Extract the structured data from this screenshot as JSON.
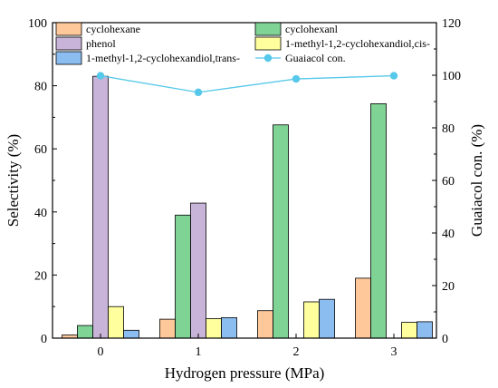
{
  "chart_data": {
    "type": "bar+line",
    "categories": [
      "0",
      "1",
      "2",
      "3"
    ],
    "xlabel": "Hydrogen pressure (MPa)",
    "ylabel": "Selectivity (%)",
    "y2label": "Guaiacol con. (%)",
    "ylim": [
      0,
      100
    ],
    "y2lim": [
      0,
      120
    ],
    "yticks": [
      "0",
      "20",
      "40",
      "60",
      "80",
      "100"
    ],
    "y2ticks": [
      "0",
      "20",
      "40",
      "60",
      "80",
      "100",
      "120"
    ],
    "series": [
      {
        "name": "cyclohexane",
        "color": "#FFC89A",
        "values": [
          1.0,
          6.0,
          8.7,
          19.0
        ]
      },
      {
        "name": "cyclohexanl",
        "color": "#7FD395",
        "values": [
          4.0,
          39.0,
          67.6,
          74.3
        ]
      },
      {
        "name": "phenol",
        "color": "#C8B4D8",
        "values": [
          83.0,
          42.8,
          0,
          0
        ]
      },
      {
        "name": "1-methyl-1,2-cyclohexandiol,cis-",
        "color": "#FFFF9E",
        "values": [
          10.0,
          6.2,
          11.5,
          5.0
        ]
      },
      {
        "name": "1-methyl-1,2-cyclohexandiol,trans-",
        "color": "#8CBDF0",
        "values": [
          2.5,
          6.5,
          12.3,
          5.2
        ]
      }
    ],
    "line": {
      "name": "Guaiacol con.",
      "color": "#56C8EA",
      "values": [
        99.8,
        93.5,
        98.6,
        99.8
      ]
    },
    "legend_position": "top"
  }
}
